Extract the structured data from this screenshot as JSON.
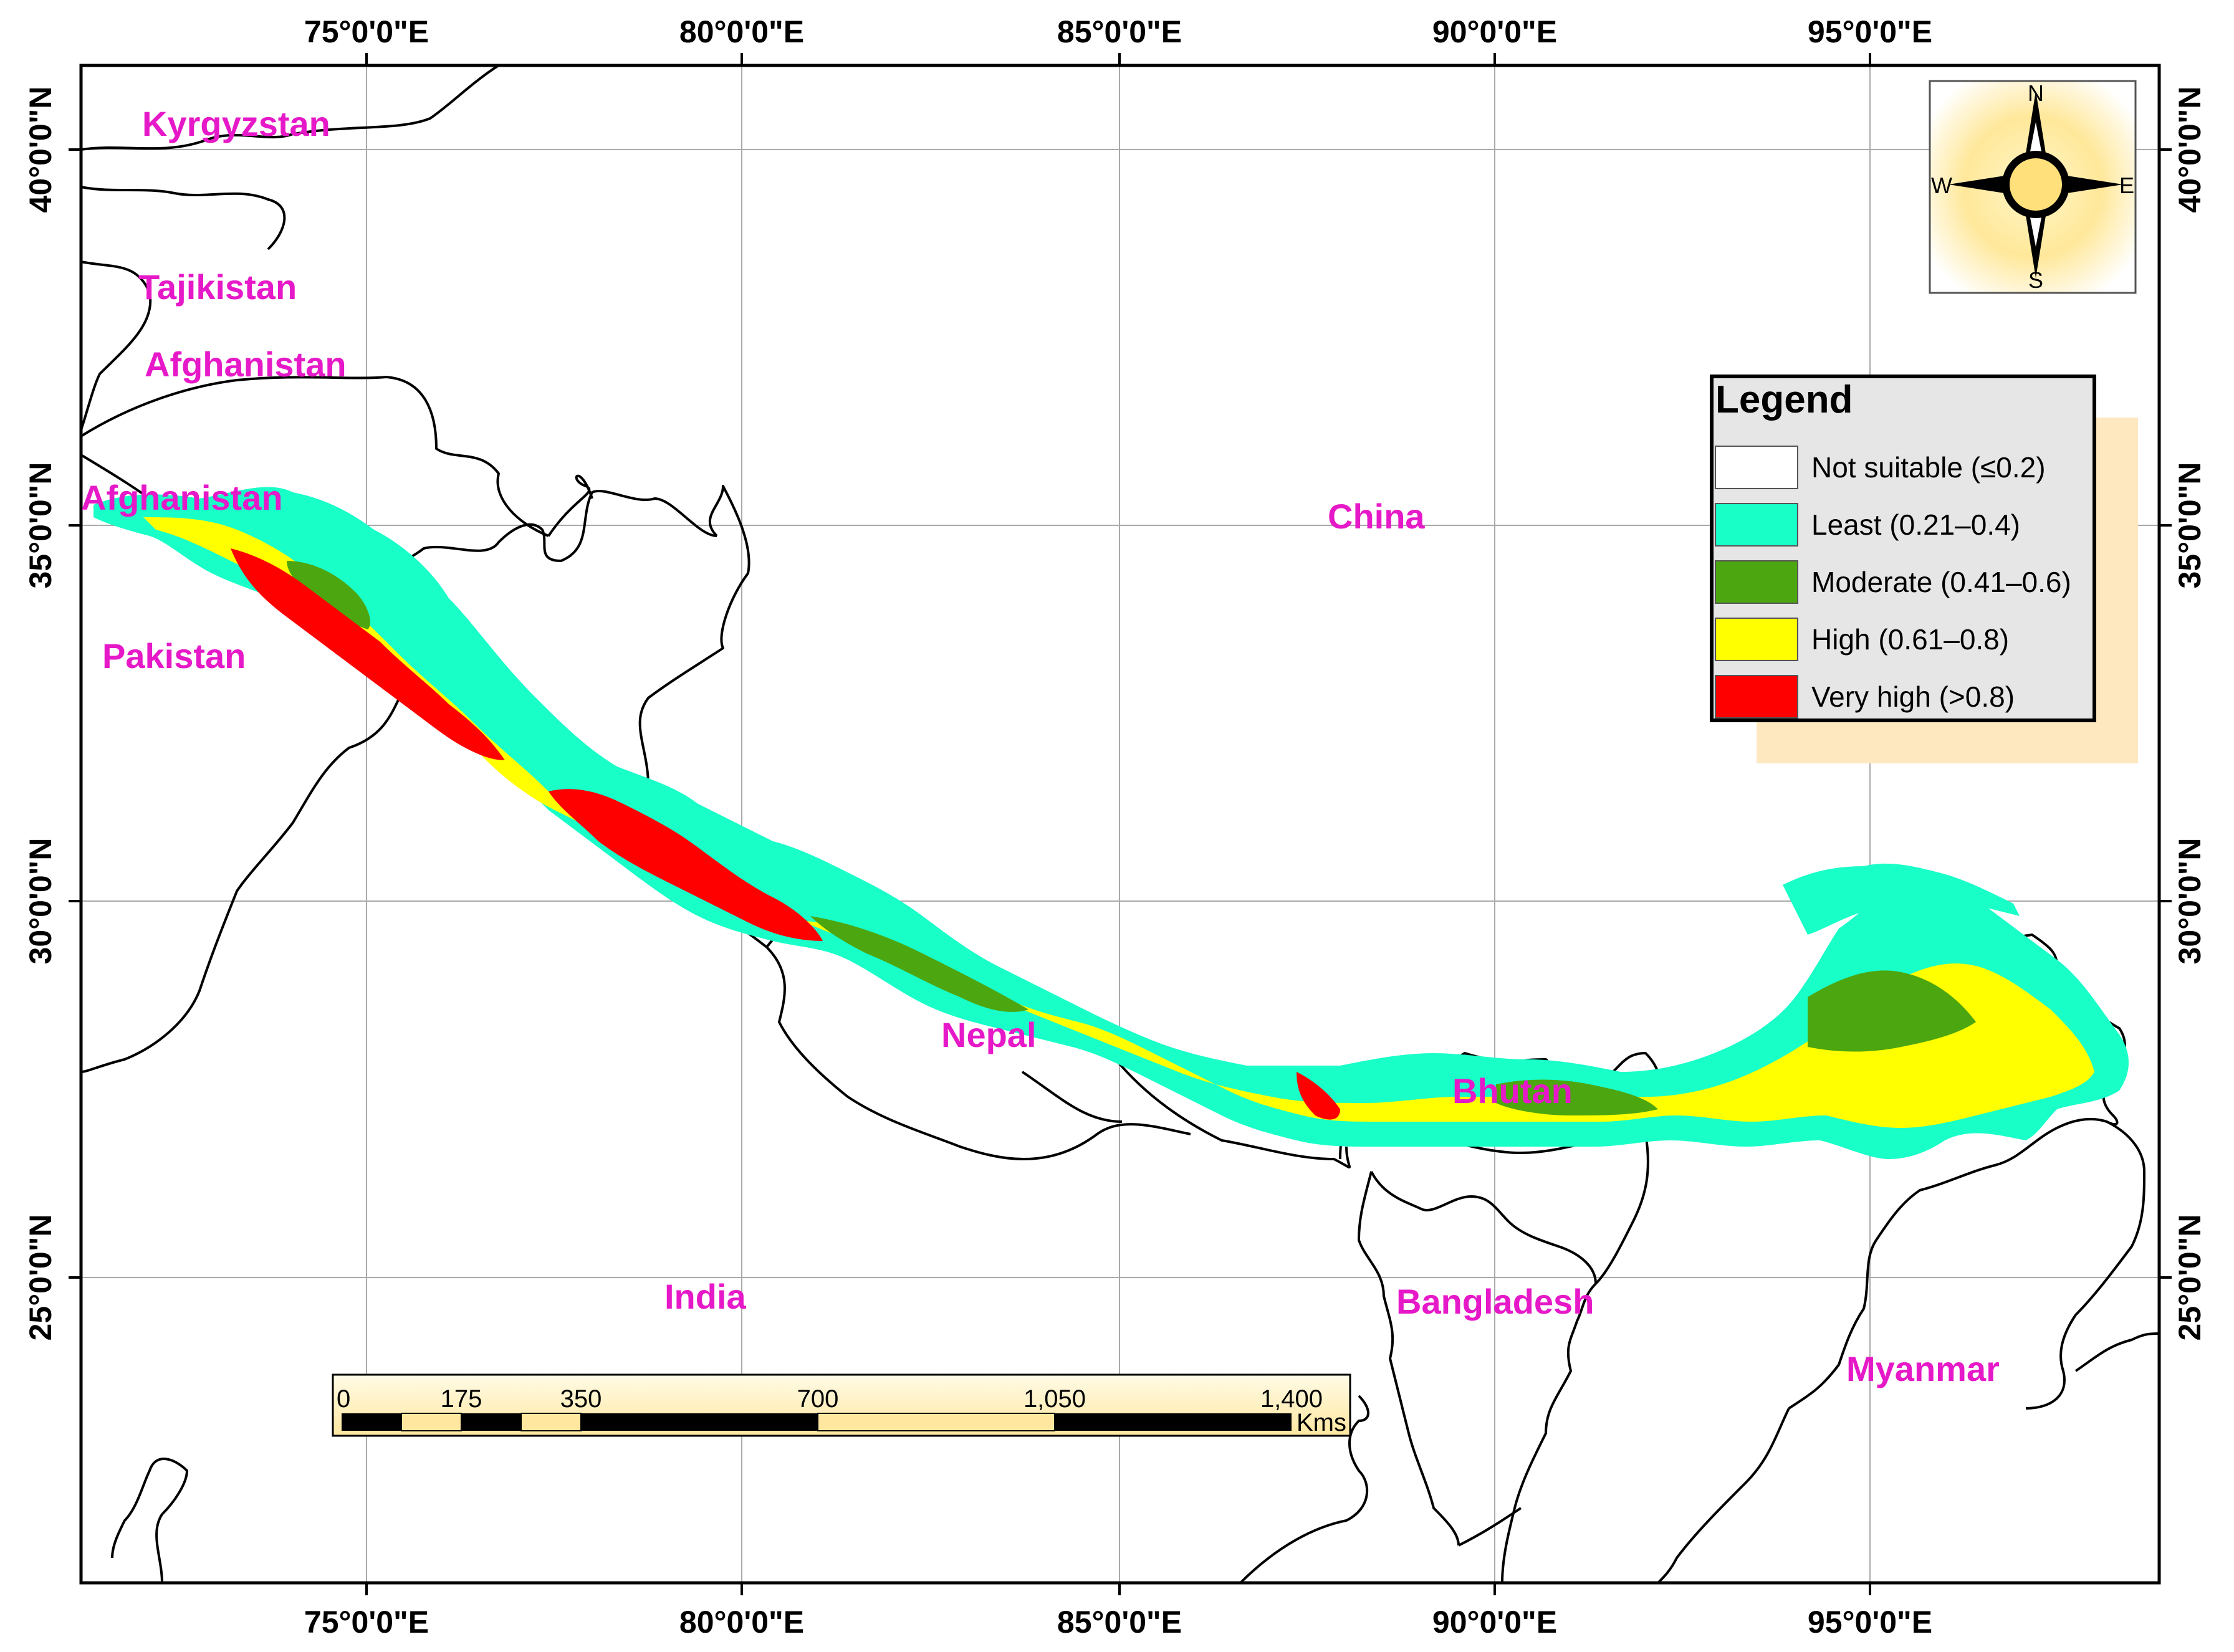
{
  "colors": {
    "not_suitable": "#ffffff",
    "least": "#19ffc8",
    "moderate": "#4ca60f",
    "high": "#ffff00",
    "very_high": "#ff0000",
    "label": "#e619c8"
  },
  "axes": {
    "top_longitudes": [
      "75°0'0\"E",
      "80°0'0\"E",
      "85°0'0\"E",
      "90°0'0\"E",
      "95°0'0\"E"
    ],
    "bottom_longitudes": [
      "75°0'0\"E",
      "80°0'0\"E",
      "85°0'0\"E",
      "90°0'0\"E",
      "95°0'0\"E"
    ],
    "left_latitudes": [
      "40°0'0\"N",
      "35°0'0\"N",
      "30°0'0\"N",
      "25°0'0\"N"
    ],
    "right_latitudes": [
      "40°0'0\"N",
      "35°0'0\"N",
      "30°0'0\"N",
      "25°0'0\"N"
    ]
  },
  "countries": [
    "Kyrgyzstan",
    "Tajikistan",
    "Afghanistan",
    "Afghanistan",
    "Pakistan",
    "China",
    "Nepal",
    "Bhutan",
    "India",
    "Bangladesh",
    "Myanmar"
  ],
  "compass": {
    "n": "N",
    "s": "S",
    "e": "E",
    "w": "W"
  },
  "legend": {
    "title": "Legend",
    "items": [
      {
        "label": "Not suitable (≤0.2)",
        "color": "#ffffff"
      },
      {
        "label": "Least (0.21–0.4)",
        "color": "#19ffc8"
      },
      {
        "label": "Moderate (0.41–0.6)",
        "color": "#4ca60f"
      },
      {
        "label": "High (0.61–0.8)",
        "color": "#ffff00"
      },
      {
        "label": "Very high (>0.8)",
        "color": "#ff0000"
      }
    ]
  },
  "scale_bar": {
    "ticks": [
      "0",
      "175",
      "350",
      "700",
      "1,050",
      "1,400"
    ],
    "unit": "Kms"
  }
}
